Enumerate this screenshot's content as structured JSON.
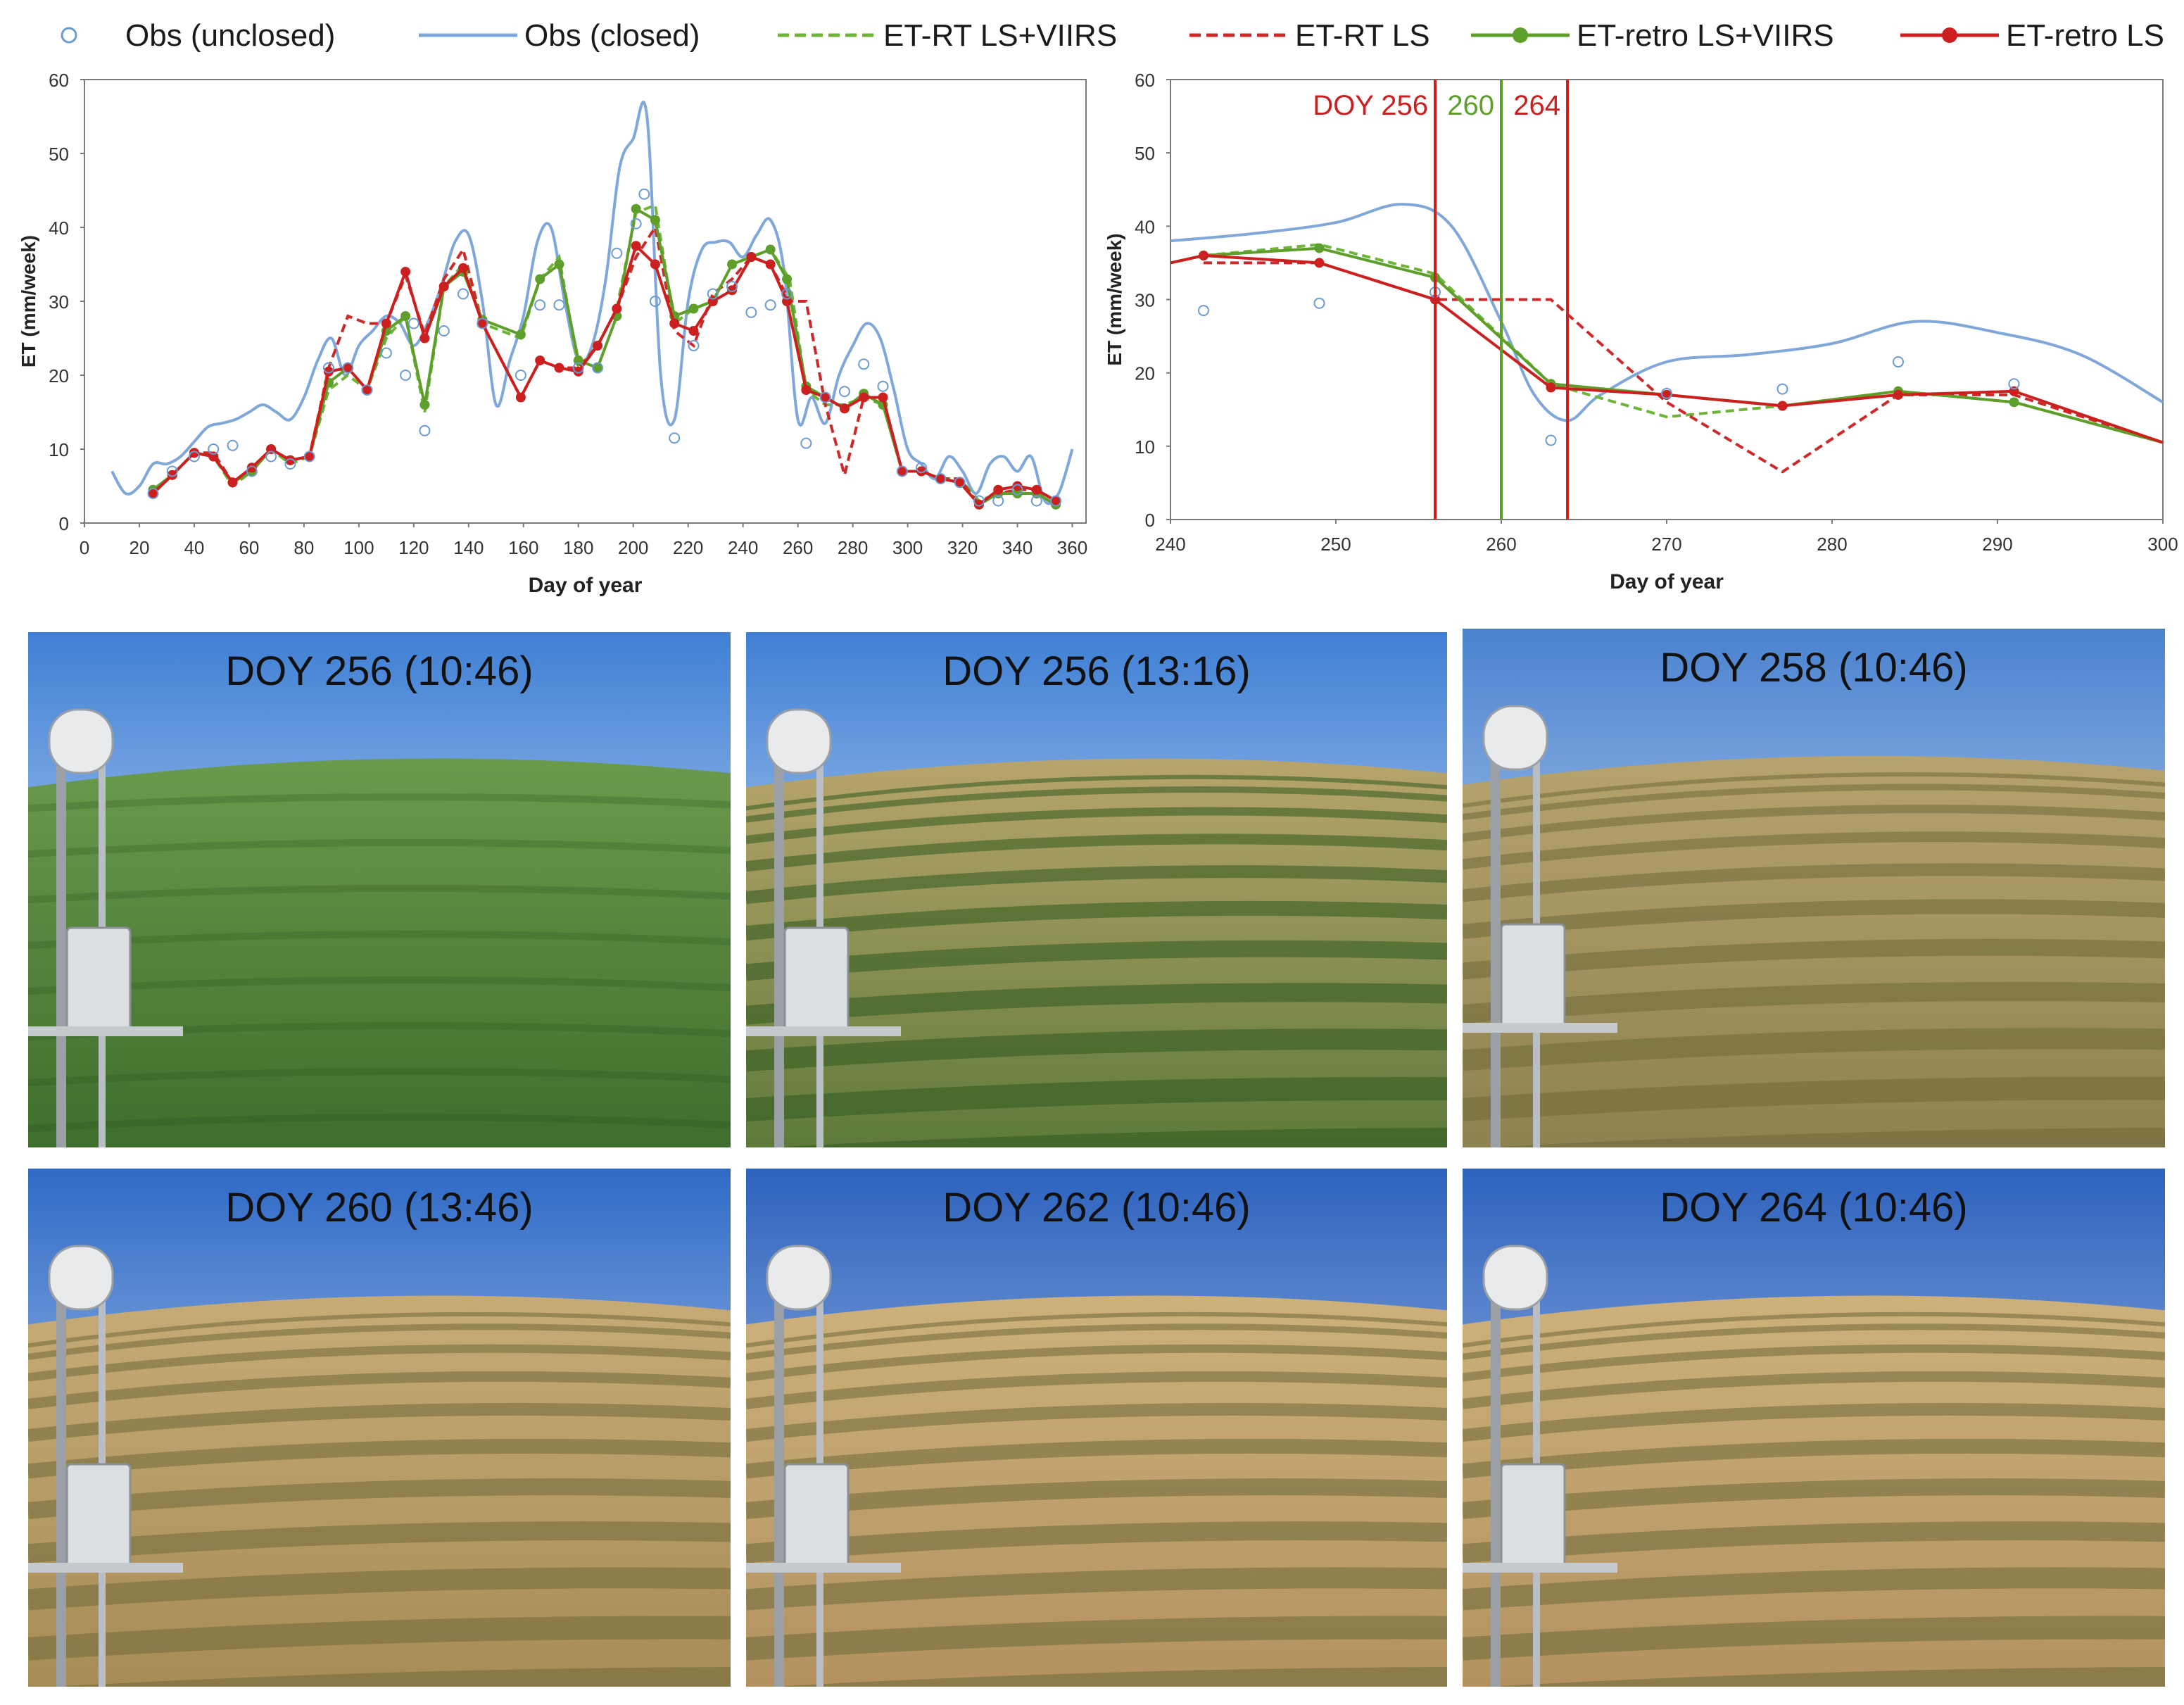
{
  "legend": [
    {
      "label": "Obs (unclosed)",
      "key": "obs_unclosed"
    },
    {
      "label": "Obs (closed)",
      "key": "obs_closed"
    },
    {
      "label": "ET-RT LS+VIIRS",
      "key": "rt_lsviirs"
    },
    {
      "label": "ET-RT LS",
      "key": "rt_ls"
    },
    {
      "label": "ET-retro LS+VIIRS",
      "key": "retro_lsviirs"
    },
    {
      "label": "ET-retro LS",
      "key": "retro_ls"
    }
  ],
  "colors": {
    "obs_unclosed": "#6b9bd1",
    "obs_closed": "#7fa7d9",
    "green": "#5e9e2a",
    "red": "#cc1f1f",
    "rt_lsviirs": "#6fb43a",
    "rt_ls": "#cc2a2a",
    "retro_lsviirs": "#5e9e2a",
    "retro_ls": "#cc1f1f"
  },
  "chart_data": [
    {
      "type": "line",
      "xlabel": "Day of year",
      "ylabel": "ET (mm/week)",
      "xlim": [
        0,
        365
      ],
      "ylim": [
        0,
        60
      ],
      "xticks": [
        0,
        20,
        40,
        60,
        80,
        100,
        120,
        140,
        160,
        180,
        200,
        220,
        240,
        260,
        280,
        300,
        320,
        340,
        360
      ],
      "yticks": [
        0,
        10,
        20,
        30,
        40,
        50,
        60
      ],
      "series": [
        {
          "name": "Obs (unclosed)",
          "style": "markers",
          "x": [
            25,
            32,
            40,
            47,
            54,
            61,
            68,
            75,
            82,
            89,
            96,
            103,
            110,
            117,
            120,
            124,
            131,
            138,
            145,
            159,
            166,
            173,
            180,
            187,
            194,
            201,
            204,
            208,
            215,
            222,
            229,
            236,
            243,
            250,
            256,
            263,
            270,
            277,
            284,
            291,
            298,
            305,
            312,
            319,
            326,
            333,
            340,
            347,
            354
          ],
          "y": [
            4,
            7,
            9,
            10,
            10.5,
            7,
            9,
            8,
            9,
            21,
            21,
            18,
            23,
            20,
            27,
            12.5,
            26,
            31,
            27,
            20,
            29.5,
            29.5,
            21,
            21,
            36.5,
            40.5,
            44.5,
            30,
            11.5,
            24,
            31,
            32,
            28.5,
            29.5,
            31,
            10.8,
            17,
            17.8,
            21.5,
            18.5,
            7,
            7.5,
            6,
            5.5,
            3,
            3,
            4.5,
            3,
            3
          ]
        },
        {
          "name": "Obs (closed)",
          "style": "smooth",
          "x": [
            10,
            15,
            20,
            25,
            30,
            35,
            40,
            45,
            50,
            55,
            60,
            65,
            70,
            75,
            80,
            85,
            90,
            95,
            100,
            105,
            110,
            115,
            120,
            125,
            130,
            135,
            140,
            145,
            150,
            155,
            160,
            165,
            170,
            175,
            180,
            185,
            190,
            195,
            200,
            205,
            210,
            215,
            220,
            225,
            230,
            235,
            240,
            245,
            250,
            255,
            260,
            265,
            270,
            275,
            280,
            285,
            290,
            295,
            300,
            305,
            310,
            315,
            320,
            325,
            330,
            335,
            340,
            345,
            350,
            355,
            360
          ],
          "y": [
            7,
            4,
            5,
            8,
            8,
            9,
            11,
            13,
            13.5,
            14,
            15,
            16,
            15,
            14,
            17,
            22,
            25,
            20,
            24,
            26,
            28,
            27,
            24,
            27,
            32,
            38,
            39,
            30,
            16,
            22,
            28,
            38,
            40,
            30,
            22,
            24,
            33,
            48,
            52,
            55,
            20,
            14,
            30,
            37,
            38,
            38,
            36,
            39,
            41,
            34,
            14,
            17,
            13.5,
            20,
            24,
            27,
            25,
            18,
            10,
            8,
            6,
            9,
            7,
            4,
            8,
            9,
            7,
            9,
            3,
            4,
            10
          ]
        },
        {
          "name": "ET-RT LS+VIIRS",
          "style": "dashed",
          "x": [
            25,
            32,
            40,
            47,
            54,
            61,
            68,
            75,
            82,
            89,
            96,
            103,
            110,
            117,
            124,
            131,
            138,
            145,
            159,
            166,
            173,
            180,
            187,
            194,
            201,
            208,
            215,
            222,
            229,
            236,
            243,
            250,
            257,
            263,
            270,
            277,
            284,
            291,
            298,
            305,
            312,
            319,
            326,
            333,
            340,
            347,
            354
          ],
          "y": [
            4.5,
            6.5,
            9.5,
            9,
            5,
            7,
            10,
            8,
            9,
            18,
            20,
            18,
            25,
            28,
            15,
            32,
            35,
            27,
            25,
            33,
            36,
            21,
            24,
            29,
            42,
            43,
            27,
            29,
            30,
            35,
            36,
            37,
            33,
            18,
            16,
            16,
            17,
            16,
            7,
            7,
            6,
            6,
            3,
            4,
            4,
            4,
            2.5
          ]
        },
        {
          "name": "ET-RT LS",
          "style": "dashed",
          "x": [
            25,
            32,
            40,
            47,
            54,
            61,
            68,
            75,
            82,
            89,
            96,
            103,
            110,
            117,
            124,
            131,
            138,
            145,
            159,
            166,
            173,
            180,
            187,
            194,
            201,
            208,
            215,
            222,
            229,
            236,
            243,
            250,
            257,
            263,
            270,
            277,
            284,
            291,
            298,
            305,
            312,
            319,
            326,
            333,
            340,
            347,
            354
          ],
          "y": [
            4,
            6.5,
            9.5,
            9.5,
            5.5,
            7,
            10,
            8.5,
            9,
            21,
            28,
            27,
            27,
            33.5,
            25.5,
            33,
            37,
            27,
            17,
            22,
            21,
            21,
            24,
            29,
            36,
            40,
            26,
            24,
            31,
            33,
            36,
            35,
            30,
            30,
            16,
            6.5,
            17,
            17,
            7,
            7,
            6,
            6,
            2.5,
            4,
            4.5,
            4.5,
            3
          ]
        },
        {
          "name": "ET-retro LS+VIIRS",
          "style": "markers-line",
          "x": [
            25,
            32,
            40,
            47,
            54,
            61,
            68,
            75,
            82,
            89,
            96,
            103,
            110,
            117,
            124,
            131,
            138,
            145,
            159,
            166,
            173,
            180,
            187,
            194,
            201,
            208,
            215,
            222,
            229,
            236,
            243,
            250,
            256,
            263,
            270,
            277,
            284,
            291,
            298,
            305,
            312,
            319,
            326,
            333,
            340,
            347,
            354
          ],
          "y": [
            4.5,
            6.5,
            9.5,
            9,
            5.5,
            7,
            10,
            8.5,
            9,
            19,
            21,
            18,
            26,
            28,
            16,
            32,
            34,
            27.5,
            25.5,
            33,
            35,
            22,
            21,
            28,
            42.5,
            41,
            28,
            29,
            30,
            35,
            36,
            37,
            33,
            18.5,
            17,
            15.5,
            17.5,
            16,
            7,
            7,
            6,
            5.5,
            2.5,
            4,
            4,
            4,
            2.5
          ]
        },
        {
          "name": "ET-retro LS",
          "style": "markers-line",
          "x": [
            25,
            32,
            40,
            47,
            54,
            61,
            68,
            75,
            82,
            89,
            96,
            103,
            110,
            117,
            124,
            131,
            138,
            145,
            159,
            166,
            173,
            180,
            187,
            194,
            201,
            208,
            215,
            222,
            229,
            236,
            243,
            250,
            256,
            263,
            270,
            277,
            284,
            291,
            298,
            305,
            312,
            319,
            326,
            333,
            340,
            347,
            354
          ],
          "y": [
            4,
            6.5,
            9.5,
            9,
            5.5,
            7.5,
            10,
            8.5,
            9,
            20.5,
            21,
            18,
            27,
            34,
            25,
            32,
            34.5,
            27,
            17,
            22,
            21,
            20.5,
            24,
            29,
            37.5,
            35,
            27,
            26,
            30,
            31.5,
            36,
            35,
            30,
            18,
            17,
            15.5,
            17,
            17,
            7,
            7,
            6,
            5.5,
            2.5,
            4.5,
            5,
            4.5,
            3
          ]
        }
      ]
    },
    {
      "type": "line",
      "xlabel": "Day of year",
      "ylabel": "ET (mm/week)",
      "xlim": [
        240,
        300
      ],
      "ylim": [
        0,
        60
      ],
      "xticks": [
        240,
        250,
        260,
        270,
        280,
        290,
        300
      ],
      "yticks": [
        0,
        10,
        20,
        30,
        40,
        50,
        60
      ],
      "vlines": [
        {
          "x": 256,
          "label": "DOY 256",
          "color_key": "red"
        },
        {
          "x": 260,
          "label": "260",
          "color_key": "green"
        },
        {
          "x": 264,
          "label": "264",
          "color_key": "red"
        }
      ],
      "series": [
        {
          "name": "Obs (unclosed)",
          "style": "markers",
          "x": [
            242,
            249,
            256,
            263,
            270,
            277,
            284,
            291
          ],
          "y": [
            28.5,
            29.5,
            31,
            10.8,
            17.2,
            17.8,
            21.5,
            18.5
          ]
        },
        {
          "name": "Obs (closed)",
          "style": "smooth",
          "x": [
            240,
            245,
            250,
            254,
            257,
            260,
            262,
            264,
            266,
            270,
            275,
            280,
            285,
            290,
            295,
            300
          ],
          "y": [
            38,
            39,
            40.5,
            43,
            40,
            27,
            17,
            13.5,
            17,
            21.5,
            22.5,
            24,
            27,
            25.5,
            22.5,
            16
          ]
        },
        {
          "name": "ET-RT LS+VIIRS",
          "style": "dashed",
          "x": [
            242,
            249,
            256,
            263,
            270,
            277,
            284,
            291,
            300
          ],
          "y": [
            36,
            37.5,
            33.5,
            18.5,
            14,
            15.5,
            17.5,
            16,
            10.5
          ]
        },
        {
          "name": "ET-RT LS",
          "style": "dashed",
          "x": [
            242,
            249,
            256,
            263,
            270,
            277,
            284,
            291,
            300
          ],
          "y": [
            35,
            35,
            30,
            30,
            16,
            6.5,
            17,
            17,
            10.5
          ]
        },
        {
          "name": "ET-retro LS+VIIRS",
          "style": "markers-line",
          "x": [
            240,
            242,
            249,
            256,
            263,
            270,
            277,
            284,
            291,
            300
          ],
          "y": [
            35,
            36,
            37,
            33,
            18.5,
            17,
            15.5,
            17.5,
            16,
            10.5
          ]
        },
        {
          "name": "ET-retro LS",
          "style": "markers-line",
          "x": [
            240,
            242,
            249,
            256,
            263,
            270,
            277,
            284,
            291,
            300
          ],
          "y": [
            35,
            36,
            35,
            30,
            18,
            17,
            15.5,
            17,
            17.5,
            10.5
          ]
        }
      ]
    }
  ],
  "photos": [
    {
      "label": "DOY 256 (10:46)",
      "variant": "green"
    },
    {
      "label": "DOY 256 (13:16)",
      "variant": "mixed-green"
    },
    {
      "label": "DOY 258 (10:46)",
      "variant": "olive"
    },
    {
      "label": "DOY 260 (13:46)",
      "variant": "tan"
    },
    {
      "label": "DOY 262 (10:46)",
      "variant": "tan-rows"
    },
    {
      "label": "DOY 264 (10:46)",
      "variant": "tan-rows"
    }
  ]
}
